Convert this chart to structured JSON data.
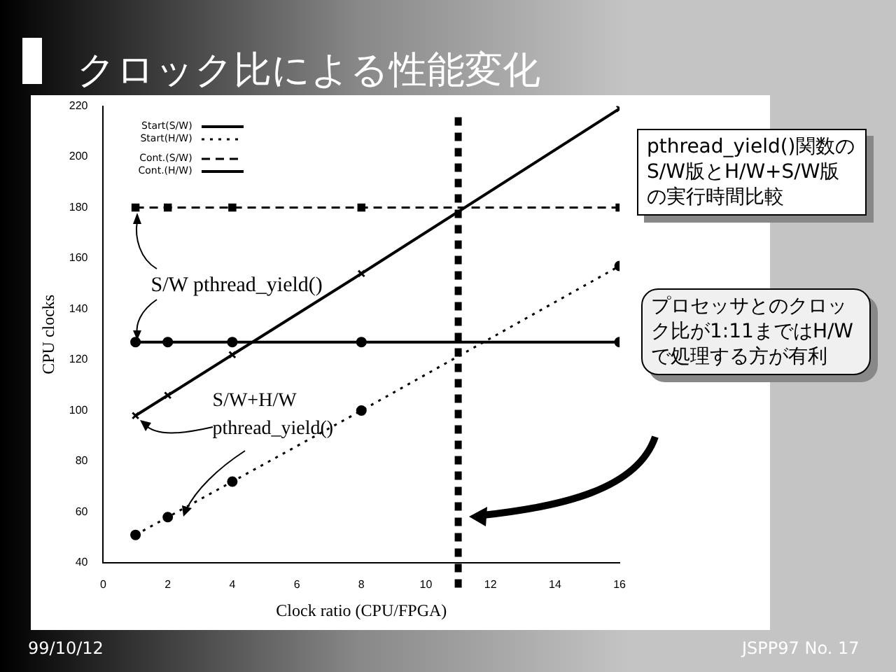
{
  "chart_data": {
    "type": "line",
    "title": "クロック比による性能変化",
    "xlabel": "Clock ratio (CPU/FPGA)",
    "ylabel": "CPU clocks",
    "x": [
      1,
      2,
      4,
      8,
      16
    ],
    "xlim": [
      0,
      16
    ],
    "xticks": [
      0,
      2,
      4,
      6,
      8,
      10,
      12,
      14,
      16
    ],
    "ylim": [
      40,
      220
    ],
    "yticks": [
      40,
      60,
      80,
      100,
      120,
      140,
      160,
      180,
      200,
      220
    ],
    "grid": false,
    "legend": "top left",
    "series": [
      {
        "name": "Start(S/W)",
        "color": "#000000",
        "values": [
          127,
          127,
          127,
          127,
          127
        ],
        "marker": "circle",
        "line_style": "solid"
      },
      {
        "name": "Start(H/W)",
        "color": "#000000",
        "values": [
          51,
          58,
          72,
          100,
          157
        ],
        "marker": "circle",
        "line_style": "dotted"
      },
      {
        "name": "Cont.(S/W)",
        "color": "#000000",
        "values": [
          180,
          180,
          180,
          180,
          180
        ],
        "marker": "square",
        "line_style": "dashed"
      },
      {
        "name": "Cont.(H/W)",
        "color": "#000000",
        "values": [
          98,
          106,
          122,
          154,
          219
        ],
        "marker": "cross",
        "line_style": "solid"
      }
    ],
    "ref_lines": [
      {
        "axis": "x",
        "value": 11,
        "color": "#000000",
        "line_style": "dashed"
      }
    ],
    "annotations": [
      {
        "text": "S/W pthread_yield()",
        "x": 1,
        "y": 127
      },
      {
        "text": "S/W+H/W pthread_yield()",
        "x": 1,
        "y": 98
      },
      "pthread_yield()関数のS/W版とH/W+S/W版の実行時間比較",
      "プロセッサとのクロック比が1:11まではH/Wで処理する方が有利",
      "99/10/12",
      "JSPP97 No. 17"
    ]
  }
}
